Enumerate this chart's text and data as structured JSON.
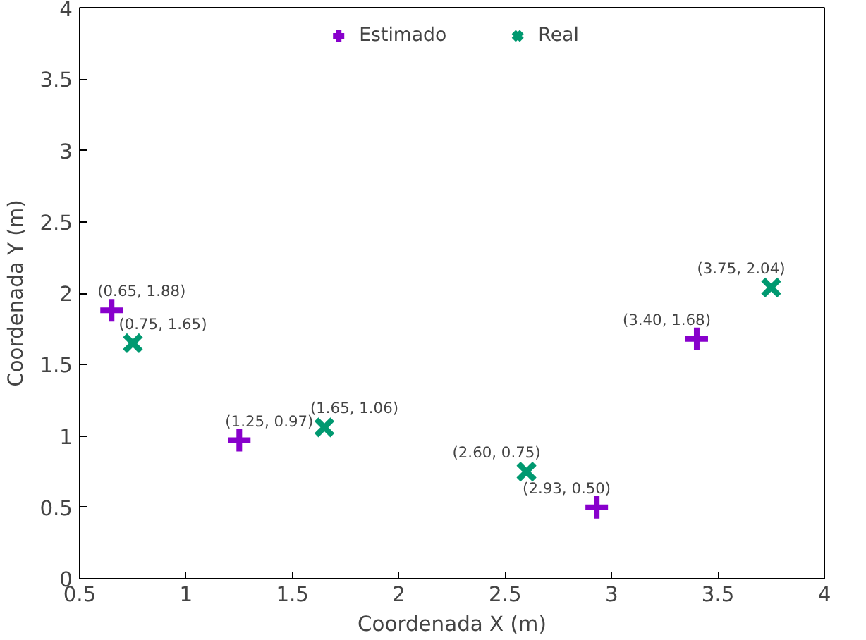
{
  "chart_data": {
    "type": "scatter",
    "xlabel": "Coordenada X (m)",
    "ylabel": "Coordenada Y (m)",
    "xlim": [
      0.5,
      4
    ],
    "ylim": [
      0,
      4
    ],
    "xticks": [
      0.5,
      1,
      1.5,
      2,
      2.5,
      3,
      3.5,
      4
    ],
    "yticks": [
      0,
      0.5,
      1,
      1.5,
      2,
      2.5,
      3,
      3.5,
      4
    ],
    "grid": false,
    "legend": "top",
    "series": [
      {
        "name": "Estimado",
        "color": "#8800cc",
        "marker": "plus",
        "x": [
          0.65,
          1.25,
          2.93,
          3.4
        ],
        "values": [
          1.88,
          0.97,
          0.5,
          1.68
        ],
        "value_labels": [
          "(0.65, 1.88)",
          "(1.25, 0.97)",
          "(2.93, 0.50)",
          "(3.40, 1.68)"
        ]
      },
      {
        "name": "Real",
        "color": "#009970",
        "marker": "cross",
        "x": [
          0.75,
          1.65,
          2.6,
          3.75
        ],
        "values": [
          1.65,
          1.06,
          0.75,
          2.04
        ],
        "value_labels": [
          "(0.75, 1.65)",
          "(1.65, 1.06)",
          "(2.60, 0.75)",
          "(3.75, 2.04)"
        ]
      }
    ]
  }
}
